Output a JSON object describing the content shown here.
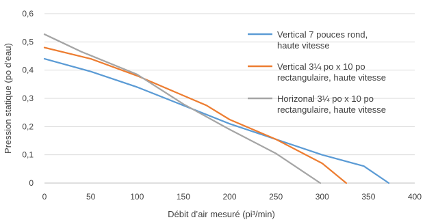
{
  "chart_data": {
    "type": "line",
    "title": "",
    "xlabel": "Débit d’air mesuré (pi³/min)",
    "ylabel": "Pression statique (po d’eau)",
    "xlim": [
      0,
      400
    ],
    "ylim": [
      0,
      0.6
    ],
    "x_ticks": [
      "0",
      "50",
      "100",
      "150",
      "200",
      "250",
      "300",
      "350",
      "400"
    ],
    "y_ticks": [
      "0",
      "0,1",
      "0,2",
      "0,3",
      "0,4",
      "0,5",
      "0,6"
    ],
    "grid": "horizontal",
    "legend_position": "top-right",
    "series": [
      {
        "name": "Vertical 7 pouces rond, haute vitesse",
        "legend_lines": [
          "Vertical 7 pouces rond,",
          "haute vitesse"
        ],
        "color": "#5b9bd5",
        "points": [
          [
            0,
            0.44
          ],
          [
            50,
            0.395
          ],
          [
            100,
            0.34
          ],
          [
            150,
            0.275
          ],
          [
            200,
            0.21
          ],
          [
            250,
            0.155
          ],
          [
            300,
            0.1
          ],
          [
            345,
            0.06
          ],
          [
            372,
            0
          ]
        ]
      },
      {
        "name": "Vertical 3¼ po x 10 po rectangulaire, haute vitesse",
        "legend_lines": [
          "Vertical 3¼ po x 10 po",
          "rectangulaire, haute vitesse"
        ],
        "color": "#ed7d31",
        "points": [
          [
            0,
            0.48
          ],
          [
            50,
            0.44
          ],
          [
            100,
            0.38
          ],
          [
            150,
            0.31
          ],
          [
            175,
            0.275
          ],
          [
            200,
            0.225
          ],
          [
            250,
            0.155
          ],
          [
            300,
            0.07
          ],
          [
            326,
            0
          ]
        ]
      },
      {
        "name": "Horizonal 3¼ po x 10 po rectangulaire, haute vitesse",
        "legend_lines": [
          "Horizonal 3¼ po x 10 po",
          "rectangulaire, haute vitesse"
        ],
        "color": "#a5a5a5",
        "points": [
          [
            0,
            0.527
          ],
          [
            40,
            0.465
          ],
          [
            100,
            0.385
          ],
          [
            150,
            0.28
          ],
          [
            200,
            0.19
          ],
          [
            250,
            0.105
          ],
          [
            298,
            0
          ]
        ]
      }
    ]
  }
}
